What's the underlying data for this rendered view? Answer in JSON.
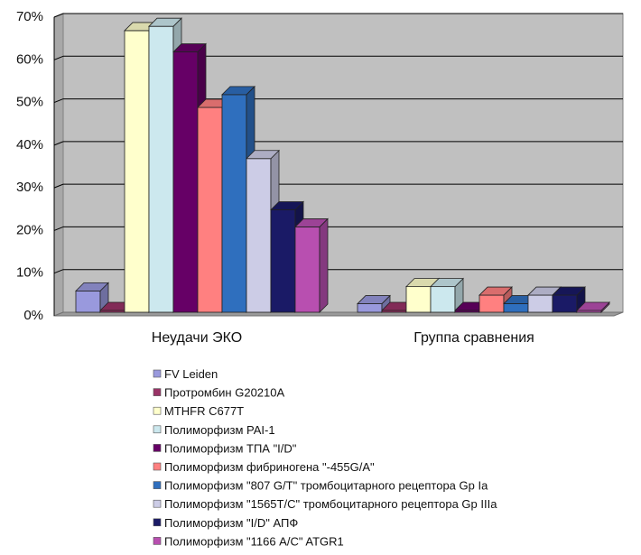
{
  "chart_data": {
    "type": "bar",
    "style": "3d-clustered-column",
    "title": "",
    "xlabel": "",
    "ylabel": "",
    "ylim": [
      0,
      70
    ],
    "y_ticks": [
      0,
      10,
      20,
      30,
      40,
      50,
      60,
      70
    ],
    "y_tick_suffix": "%",
    "grid": true,
    "legend_position": "bottom",
    "categories": [
      "Неудачи ЭКО",
      "Группа сравнения"
    ],
    "series": [
      {
        "name": "FV Leiden",
        "color": "#9999dd",
        "values": [
          5,
          2
        ]
      },
      {
        "name": "Протромбин  G20210A",
        "color": "#993366",
        "values": [
          0,
          0
        ]
      },
      {
        "name": "MTHFR C677T",
        "color": "#ffffcc",
        "values": [
          66,
          6
        ]
      },
      {
        "name": "Полиморфизм PAI-1",
        "color": "#cce8ee",
        "values": [
          67,
          6
        ]
      },
      {
        "name": "Полиморфизм ТПА \"I/D\"",
        "color": "#660066",
        "values": [
          61,
          0
        ]
      },
      {
        "name": "Полиморфизм фибриногена \"-455G/A\"",
        "color": "#ff8080",
        "values": [
          48,
          4
        ]
      },
      {
        "name": "Полиморфизм \"807 G/T\" тромбоцитарного рецептора  Gp Ia",
        "color": "#2f6fbe",
        "values": [
          51,
          2
        ]
      },
      {
        "name": "Полиморфизм \"1565T/C\" тромбоцитарного рецептора  Gp IIIa",
        "color": "#cccce6",
        "values": [
          36,
          4
        ]
      },
      {
        "name": "Полиморфизм \"I/D\" АПФ",
        "color": "#1a1a66",
        "values": [
          24,
          4
        ]
      },
      {
        "name": "Полиморфизм \"1166 A/C\" ATGR1",
        "color": "#b84fb0",
        "values": [
          20,
          0
        ]
      }
    ]
  }
}
